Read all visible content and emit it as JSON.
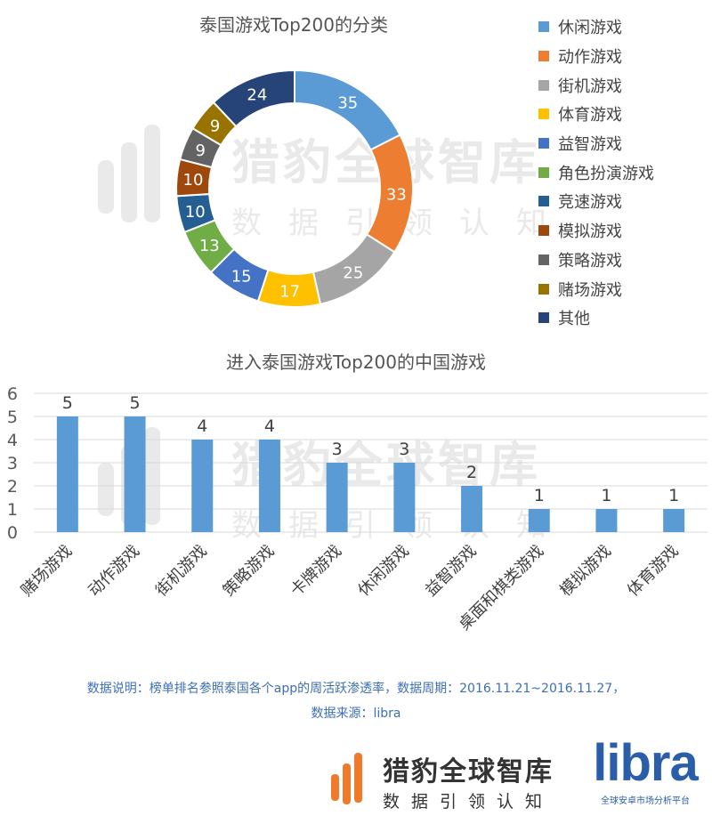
{
  "watermark": {
    "brand": "猎豹全球智库",
    "slogan": "数据引领认知"
  },
  "chart_data": [
    {
      "type": "pie",
      "variant": "doughnut",
      "title": "泰国游戏Top200的分类",
      "categories": [
        "休闲游戏",
        "动作游戏",
        "街机游戏",
        "体育游戏",
        "益智游戏",
        "角色扮演游戏",
        "竞速游戏",
        "模拟游戏",
        "策略游戏",
        "赌场游戏",
        "其他"
      ],
      "values": [
        35,
        33,
        25,
        17,
        15,
        13,
        10,
        10,
        9,
        9,
        24
      ],
      "colors": [
        "#5b9bd5",
        "#ed7d31",
        "#a5a5a5",
        "#ffc000",
        "#4472c4",
        "#70ad47",
        "#255e91",
        "#9e480e",
        "#636363",
        "#997300",
        "#264478"
      ],
      "legend": "right"
    },
    {
      "type": "bar",
      "title": "进入泰国游戏Top200的中国游戏",
      "categories": [
        "赌场游戏",
        "动作游戏",
        "街机游戏",
        "策略游戏",
        "卡牌游戏",
        "休闲游戏",
        "益智游戏",
        "桌面和棋类游戏",
        "模拟游戏",
        "体育游戏"
      ],
      "values": [
        5,
        5,
        4,
        4,
        3,
        3,
        2,
        1,
        1,
        1
      ],
      "ylim": [
        0,
        6
      ],
      "yticks": [
        0,
        1,
        2,
        3,
        4,
        5,
        6
      ],
      "grid": true,
      "color": "#5b9bd5"
    }
  ],
  "note": {
    "line1": "数据说明：榜单排名参照泰国各个app的周活跃渗透率，数据周期：2016.11.21~2016.11.27，",
    "line2": "数据来源：libra"
  },
  "footer": {
    "brand_cn": "猎豹全球智库",
    "brand_sub": "数据引领认知",
    "libra": "libra",
    "libra_tag": "全球安卓市场分析平台"
  }
}
